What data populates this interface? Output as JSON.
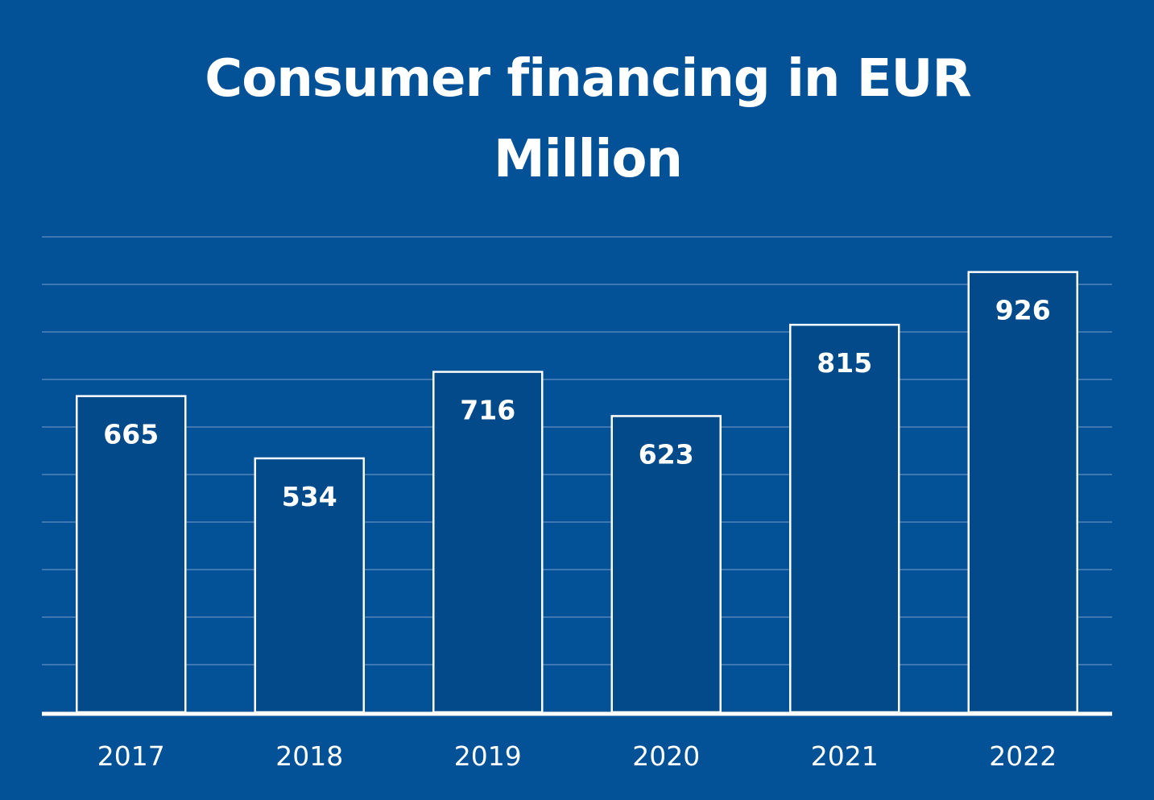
{
  "chart_data": {
    "type": "bar",
    "title": "Consumer financing in EUR Million",
    "categories": [
      "2017",
      "2018",
      "2019",
      "2020",
      "2021",
      "2022"
    ],
    "values": [
      665,
      534,
      716,
      623,
      815,
      926
    ],
    "xlabel": "",
    "ylabel": "",
    "ylim": [
      0,
      1000
    ],
    "grid": true,
    "data_labels": true,
    "colors": {
      "background": "#035196",
      "bar_fill": "#024A8A",
      "bar_stroke": "#ffffff",
      "gridline": "#3E78B2",
      "axis": "#ffffff",
      "text": "#ffffff"
    }
  }
}
